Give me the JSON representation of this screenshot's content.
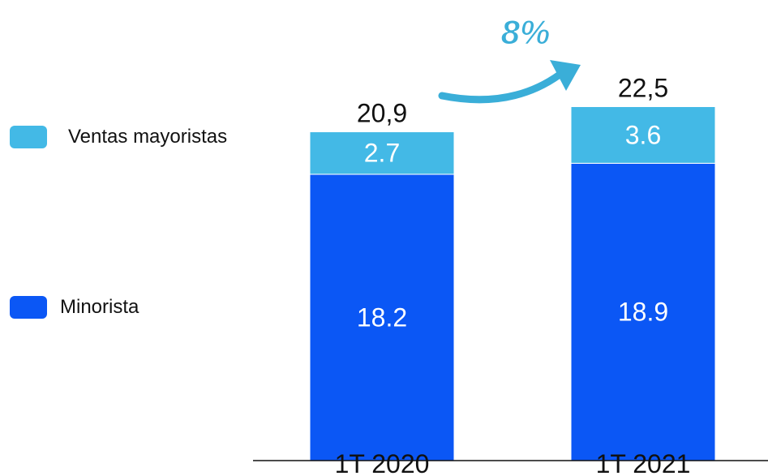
{
  "chart_data": {
    "type": "bar",
    "stacked": true,
    "categories": [
      "1T 2020",
      "1T 2021"
    ],
    "series": [
      {
        "name": "Minorista",
        "values": [
          18.2,
          18.9
        ],
        "color": "#0b57f5",
        "labels": [
          "18.2",
          "18.9"
        ]
      },
      {
        "name": "Ventas mayoristas",
        "values": [
          2.7,
          3.6
        ],
        "color": "#43b9e6",
        "labels": [
          "2.7",
          "3.6"
        ]
      }
    ],
    "totals": [
      "20,9",
      "22,5"
    ],
    "growth_label": "8%",
    "growth_color": "#3aaed8",
    "legend_position": "left",
    "grid": false
  }
}
